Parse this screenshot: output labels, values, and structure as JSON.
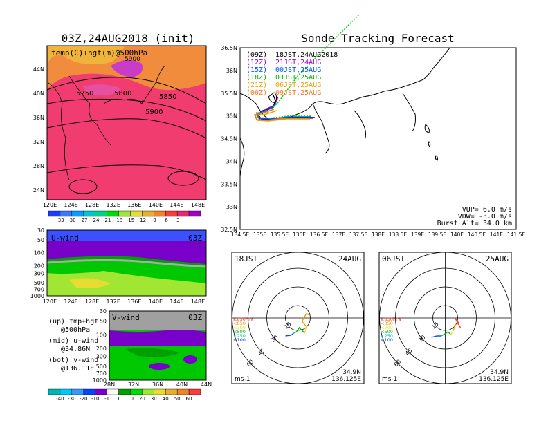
{
  "left_title": "03Z,24AUG2018 (init)",
  "main_title": "Sonde Tracking Forecast",
  "top_panel": {
    "label": "temp(C)+hgt(m)@500hPa",
    "lat_ticks": [
      "44N",
      "40N",
      "36N",
      "32N",
      "28N",
      "24N"
    ],
    "lon_ticks": [
      "120E",
      "124E",
      "128E",
      "132E",
      "136E",
      "140E",
      "144E",
      "148E"
    ],
    "contours": [
      "5750",
      "5800",
      "5850",
      "5900",
      "5900"
    ],
    "colorbar_labels": [
      "-33",
      "-30",
      "-27",
      "-24",
      "-21",
      "-18",
      "-15",
      "-12",
      "-9",
      "-6",
      "-3"
    ],
    "colorbar_colors": [
      "#1e3cff",
      "#3c78ff",
      "#00a0ff",
      "#00c8c8",
      "#00d28c",
      "#00dc00",
      "#a0e632",
      "#e6dc32",
      "#e6af2d",
      "#f08228",
      "#fa3c3c",
      "#e6286e",
      "#a000c8"
    ]
  },
  "mid_panel": {
    "label": "U-wind",
    "time": "03Z",
    "p_ticks": [
      "30",
      "50",
      "100",
      "200",
      "300",
      "500",
      "700",
      "1000"
    ],
    "lon_ticks": [
      "120E",
      "124E",
      "128E",
      "132E",
      "136E",
      "140E",
      "144E",
      "148E"
    ]
  },
  "bot_panel": {
    "label": "V-wind",
    "time": "03Z",
    "p_ticks": [
      "30",
      "50",
      "100",
      "200",
      "300",
      "500",
      "700",
      "1000"
    ],
    "lat_ticks": [
      "28N",
      "32N",
      "36N",
      "40N",
      "44N"
    ]
  },
  "notes": [
    {
      "a": "(up) tmp+hgt",
      "b": "@500hPa"
    },
    {
      "a": "(mid) u-wind",
      "b": "@34.86N"
    },
    {
      "a": "(bot) v-wind",
      "b": "@136.11E"
    }
  ],
  "wind_colorbar": {
    "labels": [
      "-40",
      "-30",
      "-20",
      "-10",
      "-1",
      "1",
      "10",
      "20",
      "30",
      "40",
      "50",
      "60"
    ],
    "colors": [
      "#00b4b4",
      "#00c8ff",
      "#3c96ff",
      "#0046ff",
      "#7800c8",
      "#ffffff",
      "#00a000",
      "#00dc00",
      "#a0e632",
      "#e6dc32",
      "#e6af2d",
      "#f08228",
      "#fa3c3c"
    ]
  },
  "map": {
    "lat_ticks": [
      "36.5N",
      "36N",
      "35.5N",
      "35N",
      "34.5N",
      "34N",
      "33.5N",
      "33N",
      "32.5N"
    ],
    "lon_ticks": [
      "134.5E",
      "135E",
      "135.5E",
      "136E",
      "136.5E",
      "137E",
      "137.5E",
      "138E",
      "138.5E",
      "139E",
      "139.5E",
      "140E",
      "140.5E",
      "141E",
      "141.5E"
    ],
    "legend": [
      {
        "run": "(09Z)",
        "time": "18JST,24AUG2018",
        "color": "#000000"
      },
      {
        "run": "(12Z)",
        "time": "21JST,24AUG",
        "color": "#a000c8"
      },
      {
        "run": "(15Z)",
        "time": "00JST,25AUG",
        "color": "#0050ff"
      },
      {
        "run": "(18Z)",
        "time": "03JST,25AUG",
        "color": "#00b400"
      },
      {
        "run": "(21Z)",
        "time": "06JST,25AUG",
        "color": "#f0a000"
      },
      {
        "run": "(00Z)",
        "time": "09JST,25AUG",
        "color": "#f07828"
      }
    ],
    "info": [
      "VUP= 6.0 m/s",
      "VDW= -3.0 m/s",
      "Burst Alt= 34.0 km"
    ]
  },
  "polar_left": {
    "time": "18JST",
    "date": "24AUG",
    "rings": [
      "15",
      "30",
      "45",
      "60"
    ],
    "unit": "ms-1",
    "lat": "34.9N",
    "lon": "136.125E"
  },
  "polar_right": {
    "time": "06JST",
    "date": "25AUG",
    "rings": [
      "15",
      "30",
      "45",
      "60"
    ],
    "unit": "ms-1",
    "lat": "34.9N",
    "lon": "136.125E"
  },
  "pressure_legend": [
    {
      "label": "≥850hPa",
      "color": "#fa3c3c"
    },
    {
      "label": "<850",
      "color": "#f0a000"
    },
    {
      "label": "<700",
      "color": "#e6dc32"
    },
    {
      "label": "<500",
      "color": "#00b400"
    },
    {
      "label": "<250",
      "color": "#00b4b4"
    },
    {
      "label": "<100",
      "color": "#0050ff"
    }
  ]
}
